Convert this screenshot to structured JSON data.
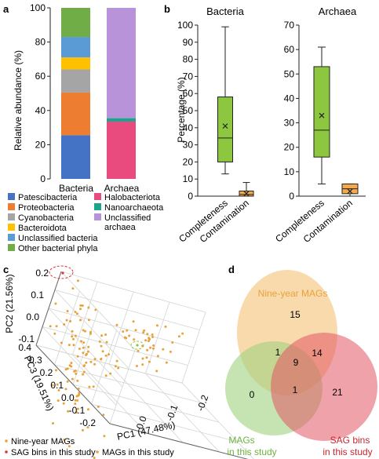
{
  "panels": {
    "a": "a",
    "b": "b",
    "c": "c",
    "d": "d"
  },
  "chart_data": [
    {
      "type": "bar",
      "stacked": true,
      "categories": [
        "Bacteria",
        "Archaea"
      ],
      "ylabel": "Relative abundance (%)",
      "ylim": [
        0,
        100
      ],
      "yticks": [
        0,
        20,
        40,
        60,
        80,
        100
      ],
      "series": [
        {
          "name": "Patescibacteria",
          "color": "#4472c4",
          "values": [
            25.5,
            0
          ]
        },
        {
          "name": "Proteobacteria",
          "color": "#ed7d31",
          "values": [
            25,
            0
          ]
        },
        {
          "name": "Cyanobacteria",
          "color": "#a5a5a5",
          "values": [
            13.5,
            0
          ]
        },
        {
          "name": "Bacteroidota",
          "color": "#ffc000",
          "values": [
            7,
            0
          ]
        },
        {
          "name": "Unclassified bacteria",
          "color": "#5b9bd5",
          "values": [
            12,
            0
          ]
        },
        {
          "name": "Other bacterial phyla",
          "color": "#70ad47",
          "values": [
            17,
            0
          ]
        },
        {
          "name": "Halobacteriota",
          "color": "#e94b7e",
          "values": [
            0,
            33.5
          ]
        },
        {
          "name": "Nanoarchaeota",
          "color": "#1aa58c",
          "values": [
            0,
            2
          ]
        },
        {
          "name": "Unclassified archaea",
          "color": "#b893d9",
          "values": [
            0,
            64.5
          ]
        }
      ],
      "legend": [
        [
          "Patescibacteria",
          "Halobacteriota"
        ],
        [
          "Proteobacteria",
          "Nanoarchaeota"
        ],
        [
          "Cyanobacteria",
          "Unclassified archaea"
        ],
        [
          "Bacteroidota",
          ""
        ],
        [
          "Unclassified bacteria",
          ""
        ],
        [
          "Other bacterial phyla",
          ""
        ]
      ]
    },
    {
      "type": "box",
      "ylabel": "Percentage (%)",
      "categories": [
        "Completeness",
        "Contamination"
      ],
      "colors": {
        "Completeness": "#8dc63f",
        "Contamination": "#f4a94e"
      },
      "subplots": [
        {
          "title": "Bacteria",
          "ylim": [
            0,
            100
          ],
          "yticks": [
            0,
            10,
            20,
            30,
            40,
            50,
            60,
            70,
            80,
            90,
            100
          ],
          "boxes": [
            {
              "category": "Completeness",
              "min": 13,
              "q1": 20,
              "median": 34,
              "q3": 58,
              "max": 99,
              "mean": 41
            },
            {
              "category": "Contamination",
              "min": 0,
              "q1": 0,
              "median": 1,
              "q3": 3,
              "max": 8,
              "mean": 1.5
            }
          ]
        },
        {
          "title": "Archaea",
          "ylim": [
            0,
            70
          ],
          "yticks": [
            0,
            10,
            20,
            30,
            40,
            50,
            60,
            70
          ],
          "boxes": [
            {
              "category": "Completeness",
              "min": 5,
              "q1": 16,
              "median": 27,
              "q3": 53,
              "max": 61,
              "mean": 33
            },
            {
              "category": "Contamination",
              "min": 0,
              "q1": 1,
              "median": 3,
              "q3": 5,
              "max": 5,
              "mean": 2
            }
          ]
        }
      ]
    },
    {
      "type": "scatter",
      "projection": "3d",
      "xlabel": "PC1 (47.48%)",
      "ylabel": "PC2 (21.56%)",
      "zlabel": "PC3 (19.51%)",
      "pc2_ticks": [
        "0.2",
        "0.1",
        "0.0",
        "-0.1"
      ],
      "pc3_ticks": [
        "0.4",
        "0.3",
        "0.2",
        "0.1",
        "0.0",
        "-0.1",
        "-0.2"
      ],
      "pc1_ticks": [
        "0.0",
        "-0.1",
        "-0.2"
      ],
      "legend": [
        "Nine-year MAGs",
        "SAG bins in this study",
        "MAGs in this study"
      ],
      "colors": {
        "nine_year": "#e8a23a",
        "sag": "#d6373f",
        "mags": "#8dc63f"
      },
      "highlight": [
        {
          "group": "SAG bins in this study",
          "circle_color": "#d6373f"
        },
        {
          "group": "MAGs in this study",
          "circle_color": "#8dc63f"
        }
      ]
    },
    {
      "type": "venn",
      "sets": [
        {
          "name": "Nine-year MAGs",
          "color": "#f5c277",
          "text_color": "#e8a23a"
        },
        {
          "name": "MAGs in this study",
          "color": "#9fd27e",
          "text_color": "#6db33f"
        },
        {
          "name": "SAG bins in this study",
          "color": "#e45664",
          "text_color": "#c9252f"
        }
      ],
      "regions": {
        "nine_only": 15,
        "mags_only": 0,
        "sag_only": 21,
        "nine_mags": 1,
        "nine_sag": 14,
        "mags_sag": 1,
        "all": 9
      }
    }
  ]
}
